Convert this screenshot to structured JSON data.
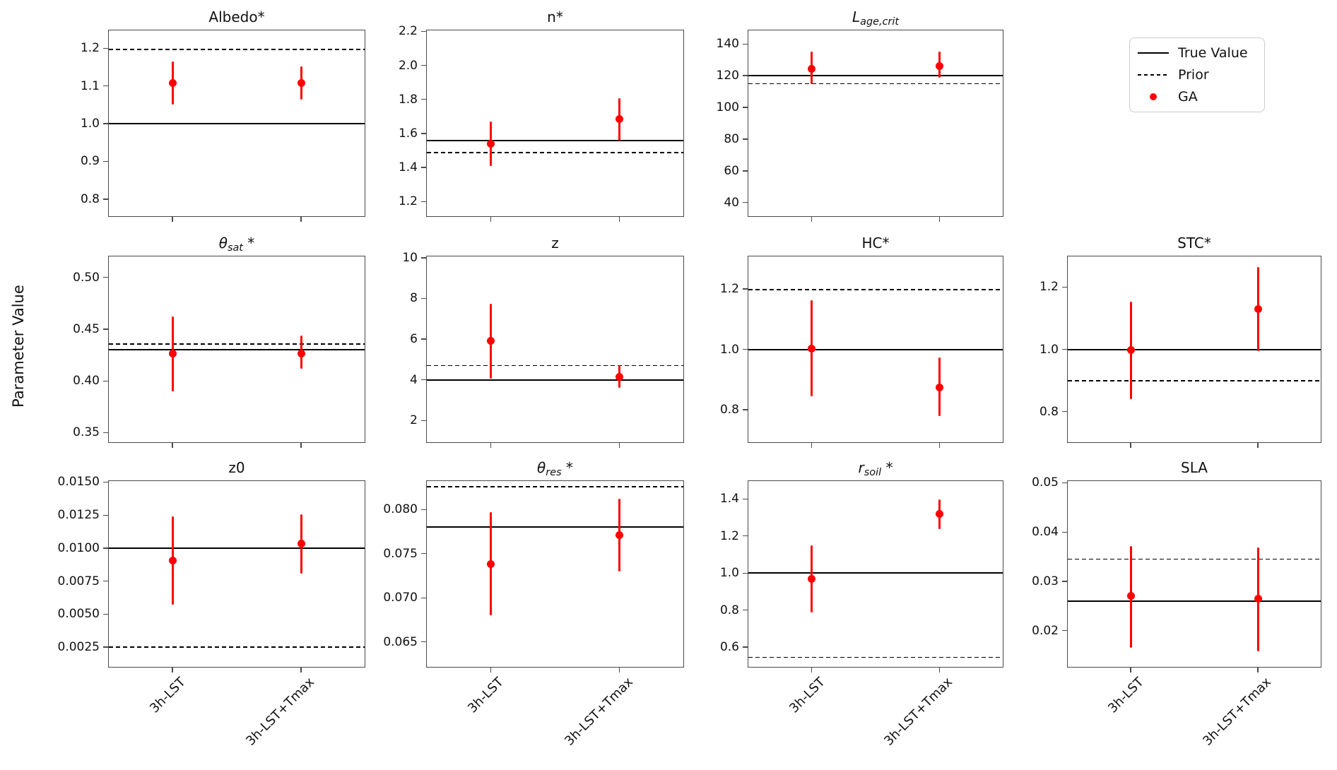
{
  "figure": {
    "ylabel": "Parameter Value",
    "background": "#ffffff",
    "ga_color": "#ff0000",
    "line_color": "#000000",
    "x_categories": [
      "3h-LST",
      "3h-LST+Tmax"
    ],
    "legend": {
      "position": "top-right",
      "items": [
        {
          "label": "True Value",
          "marker": "solid-line"
        },
        {
          "label": "Prior",
          "marker": "dashed-line"
        },
        {
          "label": "GA",
          "marker": "red-dot"
        }
      ]
    }
  },
  "chart_data": [
    {
      "id": "albedo",
      "type": "scatter",
      "grid": {
        "row": 0,
        "col": 0
      },
      "title_segments": [
        {
          "text": "Albedo*"
        }
      ],
      "ylim": [
        0.753,
        1.249
      ],
      "yticks": [
        {
          "label": "1.2",
          "value": 1.2
        },
        {
          "label": "1.1",
          "value": 1.1
        },
        {
          "label": "1.0",
          "value": 1.0
        },
        {
          "label": "0.9",
          "value": 0.9
        },
        {
          "label": "0.8",
          "value": 0.8
        }
      ],
      "true_value": 1.0,
      "prior": 1.196,
      "points": [
        {
          "x": "3h-LST",
          "y": 1.107,
          "err_lo": 1.05,
          "err_hi": 1.165
        },
        {
          "x": "3h-LST+Tmax",
          "y": 1.107,
          "err_lo": 1.063,
          "err_hi": 1.152
        }
      ]
    },
    {
      "id": "n",
      "type": "scatter",
      "grid": {
        "row": 0,
        "col": 1
      },
      "title_segments": [
        {
          "text": "n*"
        }
      ],
      "ylim": [
        1.11,
        2.21
      ],
      "yticks": [
        {
          "label": "2.2",
          "value": 2.2
        },
        {
          "label": "2.0",
          "value": 2.0
        },
        {
          "label": "1.8",
          "value": 1.8
        },
        {
          "label": "1.6",
          "value": 1.6
        },
        {
          "label": "1.4",
          "value": 1.4
        },
        {
          "label": "1.2",
          "value": 1.2
        }
      ],
      "true_value": 1.56,
      "prior": 1.487,
      "points": [
        {
          "x": "3h-LST",
          "y": 1.54,
          "err_lo": 1.41,
          "err_hi": 1.67
        },
        {
          "x": "3h-LST+Tmax",
          "y": 1.683,
          "err_lo": 1.558,
          "err_hi": 1.808
        }
      ]
    },
    {
      "id": "lage-crit",
      "type": "scatter",
      "grid": {
        "row": 0,
        "col": 2
      },
      "title_segments": [
        {
          "text": "L",
          "italic": true
        },
        {
          "text": "age,crit",
          "italic": true,
          "sub": true
        }
      ],
      "ylim": [
        31,
        149
      ],
      "yticks": [
        {
          "label": "140",
          "value": 140
        },
        {
          "label": "120",
          "value": 120
        },
        {
          "label": "100",
          "value": 100
        },
        {
          "label": "80",
          "value": 80
        },
        {
          "label": "60",
          "value": 60
        },
        {
          "label": "40",
          "value": 40
        }
      ],
      "true_value": 120,
      "prior": 115,
      "points": [
        {
          "x": "3h-LST",
          "y": 124.5,
          "err_lo": 114.5,
          "err_hi": 135
        },
        {
          "x": "3h-LST+Tmax",
          "y": 126,
          "err_lo": 118.5,
          "err_hi": 135
        }
      ]
    },
    {
      "id": "theta-sat",
      "type": "scatter",
      "grid": {
        "row": 1,
        "col": 0
      },
      "title_segments": [
        {
          "text": "θ",
          "italic": true
        },
        {
          "text": "sat",
          "italic": true,
          "sub": true
        },
        {
          "text": " *"
        }
      ],
      "ylim": [
        0.34,
        0.521
      ],
      "yticks": [
        {
          "label": "0.50",
          "value": 0.5
        },
        {
          "label": "0.45",
          "value": 0.45
        },
        {
          "label": "0.40",
          "value": 0.4
        },
        {
          "label": "0.35",
          "value": 0.35
        }
      ],
      "true_value": 0.43,
      "prior": 0.4355,
      "points": [
        {
          "x": "3h-LST",
          "y": 0.4265,
          "err_lo": 0.39,
          "err_hi": 0.462
        },
        {
          "x": "3h-LST+Tmax",
          "y": 0.4265,
          "err_lo": 0.412,
          "err_hi": 0.4435
        }
      ]
    },
    {
      "id": "z",
      "type": "scatter",
      "grid": {
        "row": 1,
        "col": 1
      },
      "title_segments": [
        {
          "text": "z"
        }
      ],
      "ylim": [
        0.9,
        10.1
      ],
      "yticks": [
        {
          "label": "10",
          "value": 10
        },
        {
          "label": "8",
          "value": 8
        },
        {
          "label": "6",
          "value": 6
        },
        {
          "label": "4",
          "value": 4
        },
        {
          "label": "2",
          "value": 2
        }
      ],
      "true_value": 4.0,
      "prior": 4.7,
      "points": [
        {
          "x": "3h-LST",
          "y": 5.9,
          "err_lo": 4.05,
          "err_hi": 7.75
        },
        {
          "x": "3h-LST+Tmax",
          "y": 4.15,
          "err_lo": 3.62,
          "err_hi": 4.73
        }
      ]
    },
    {
      "id": "hc",
      "type": "scatter",
      "grid": {
        "row": 1,
        "col": 2
      },
      "title_segments": [
        {
          "text": "HC*"
        }
      ],
      "ylim": [
        0.69,
        1.31
      ],
      "yticks": [
        {
          "label": "1.2",
          "value": 1.2
        },
        {
          "label": "1.0",
          "value": 1.0
        },
        {
          "label": "0.8",
          "value": 0.8
        }
      ],
      "true_value": 1.0,
      "prior": 1.197,
      "points": [
        {
          "x": "3h-LST",
          "y": 1.002,
          "err_lo": 0.845,
          "err_hi": 1.163
        },
        {
          "x": "3h-LST+Tmax",
          "y": 0.873,
          "err_lo": 0.778,
          "err_hi": 0.973
        }
      ]
    },
    {
      "id": "stc",
      "type": "scatter",
      "grid": {
        "row": 1,
        "col": 3
      },
      "title_segments": [
        {
          "text": "STC*"
        }
      ],
      "ylim": [
        0.7,
        1.3
      ],
      "yticks": [
        {
          "label": "1.2",
          "value": 1.2
        },
        {
          "label": "1.0",
          "value": 1.0
        },
        {
          "label": "0.8",
          "value": 0.8
        }
      ],
      "true_value": 1.0,
      "prior": 0.9,
      "points": [
        {
          "x": "3h-LST",
          "y": 0.997,
          "err_lo": 0.841,
          "err_hi": 1.153
        },
        {
          "x": "3h-LST+Tmax",
          "y": 1.128,
          "err_lo": 0.995,
          "err_hi": 1.263
        }
      ]
    },
    {
      "id": "z0",
      "type": "scatter",
      "grid": {
        "row": 2,
        "col": 0
      },
      "title_segments": [
        {
          "text": "z0"
        }
      ],
      "ylim": [
        0.00095,
        0.01513
      ],
      "yticks": [
        {
          "label": "0.0150",
          "value": 0.015
        },
        {
          "label": "0.0125",
          "value": 0.0125
        },
        {
          "label": "0.0100",
          "value": 0.01
        },
        {
          "label": "0.0075",
          "value": 0.0075
        },
        {
          "label": "0.0050",
          "value": 0.005
        },
        {
          "label": "0.0025",
          "value": 0.0025
        }
      ],
      "true_value": 0.01,
      "prior": 0.0025,
      "points": [
        {
          "x": "3h-LST",
          "y": 0.00905,
          "err_lo": 0.0057,
          "err_hi": 0.01238
        },
        {
          "x": "3h-LST+Tmax",
          "y": 0.01032,
          "err_lo": 0.00805,
          "err_hi": 0.01258
        }
      ]
    },
    {
      "id": "theta-res",
      "type": "scatter",
      "grid": {
        "row": 2,
        "col": 1
      },
      "title_segments": [
        {
          "text": "θ",
          "italic": true
        },
        {
          "text": "res",
          "italic": true,
          "sub": true
        },
        {
          "text": " *"
        }
      ],
      "ylim": [
        0.0621,
        0.0833
      ],
      "yticks": [
        {
          "label": "0.080",
          "value": 0.08
        },
        {
          "label": "0.075",
          "value": 0.075
        },
        {
          "label": "0.070",
          "value": 0.07
        },
        {
          "label": "0.065",
          "value": 0.065
        }
      ],
      "true_value": 0.078,
      "prior": 0.0826,
      "points": [
        {
          "x": "3h-LST",
          "y": 0.0738,
          "err_lo": 0.068,
          "err_hi": 0.0797
        },
        {
          "x": "3h-LST+Tmax",
          "y": 0.0771,
          "err_lo": 0.073,
          "err_hi": 0.0812
        }
      ]
    },
    {
      "id": "r-soil",
      "type": "scatter",
      "grid": {
        "row": 2,
        "col": 2
      },
      "title_segments": [
        {
          "text": "r",
          "italic": true
        },
        {
          "text": "soil",
          "italic": true,
          "sub": true
        },
        {
          "text": " *"
        }
      ],
      "ylim": [
        0.49,
        1.5
      ],
      "yticks": [
        {
          "label": "1.4",
          "value": 1.4
        },
        {
          "label": "1.2",
          "value": 1.2
        },
        {
          "label": "1.0",
          "value": 1.0
        },
        {
          "label": "0.8",
          "value": 0.8
        },
        {
          "label": "0.6",
          "value": 0.6
        }
      ],
      "true_value": 1.0,
      "prior": 0.545,
      "points": [
        {
          "x": "3h-LST",
          "y": 0.968,
          "err_lo": 0.788,
          "err_hi": 1.148
        },
        {
          "x": "3h-LST+Tmax",
          "y": 1.318,
          "err_lo": 1.238,
          "err_hi": 1.398
        }
      ]
    },
    {
      "id": "sla",
      "type": "scatter",
      "grid": {
        "row": 2,
        "col": 3
      },
      "title_segments": [
        {
          "text": "SLA"
        }
      ],
      "ylim": [
        0.0125,
        0.0505
      ],
      "yticks": [
        {
          "label": "0.05",
          "value": 0.05
        },
        {
          "label": "0.04",
          "value": 0.04
        },
        {
          "label": "0.03",
          "value": 0.03
        },
        {
          "label": "0.02",
          "value": 0.02
        }
      ],
      "true_value": 0.026,
      "prior": 0.0345,
      "points": [
        {
          "x": "3h-LST",
          "y": 0.027,
          "err_lo": 0.0165,
          "err_hi": 0.0372
        },
        {
          "x": "3h-LST+Tmax",
          "y": 0.0265,
          "err_lo": 0.0158,
          "err_hi": 0.0369
        }
      ]
    }
  ]
}
